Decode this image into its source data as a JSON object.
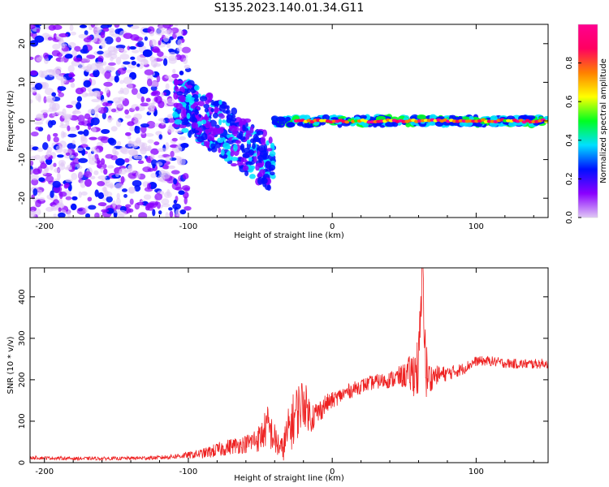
{
  "figure": {
    "title": "S135.2023.140.01.34.G11"
  },
  "chart_data": [
    {
      "type": "heatmap",
      "xlabel": "Height of straight line (km)",
      "ylabel": "Frequency (Hz)",
      "xlim": [
        -210,
        150
      ],
      "ylim": [
        -25,
        25
      ],
      "x_ticks": [
        -200,
        -100,
        0,
        100
      ],
      "y_ticks": [
        -20,
        -10,
        0,
        10,
        20
      ],
      "colorbar": {
        "label": "Normalized spectral amplitude",
        "range": [
          0.0,
          1.0
        ],
        "ticks": [
          "0.0",
          "0.2",
          "0.4",
          "0.6",
          "0.8"
        ],
        "colors": [
          "#e0c8f5",
          "#8a00ff",
          "#0010ff",
          "#00e0ff",
          "#00ff20",
          "#ffff00",
          "#ff8000",
          "#ff0060",
          "#ff0090"
        ]
      },
      "regions": [
        {
          "x_range": [
            -210,
            -100
          ],
          "f_range": [
            -25,
            25
          ],
          "amplitude": [
            0.0,
            0.3
          ],
          "pattern": "scattered noise"
        },
        {
          "x_range": [
            -110,
            -40
          ],
          "f_range": [
            -22,
            10
          ],
          "amplitude": [
            0.1,
            0.4
          ],
          "pattern": "descending streaks"
        },
        {
          "x_range": [
            -40,
            150
          ],
          "f_range": [
            -1,
            1
          ],
          "amplitude": [
            0.3,
            1.0
          ],
          "pattern": "narrow band near 0 Hz"
        }
      ]
    },
    {
      "type": "line",
      "xlabel": "Height of straight line (km)",
      "ylabel": "SNR (10 * v/v)",
      "xlim": [
        -210,
        150
      ],
      "ylim": [
        0,
        470
      ],
      "x_ticks": [
        -200,
        -100,
        0,
        100
      ],
      "y_ticks": [
        0,
        100,
        200,
        300,
        400
      ],
      "series": [
        {
          "color": "#ee2222",
          "x": [
            -210,
            -180,
            -150,
            -120,
            -100,
            -90,
            -80,
            -70,
            -60,
            -50,
            -45,
            -40,
            -35,
            -30,
            -25,
            -20,
            -15,
            -10,
            -5,
            0,
            10,
            20,
            30,
            40,
            50,
            55,
            60,
            63,
            65,
            68,
            70,
            80,
            90,
            100,
            110,
            120,
            130,
            140,
            150
          ],
          "y": [
            12,
            10,
            10,
            12,
            18,
            22,
            30,
            40,
            45,
            60,
            90,
            55,
            30,
            80,
            120,
            150,
            110,
            120,
            140,
            150,
            170,
            185,
            195,
            200,
            210,
            215,
            230,
            470,
            220,
            200,
            210,
            215,
            225,
            245,
            245,
            240,
            238,
            238,
            240
          ],
          "noise": [
            4,
            4,
            4,
            5,
            8,
            12,
            18,
            20,
            22,
            35,
            50,
            40,
            30,
            60,
            70,
            60,
            40,
            30,
            25,
            20,
            18,
            18,
            18,
            20,
            30,
            50,
            80,
            90,
            80,
            40,
            25,
            18,
            15,
            12,
            12,
            12,
            12,
            12,
            12
          ]
        }
      ]
    }
  ]
}
